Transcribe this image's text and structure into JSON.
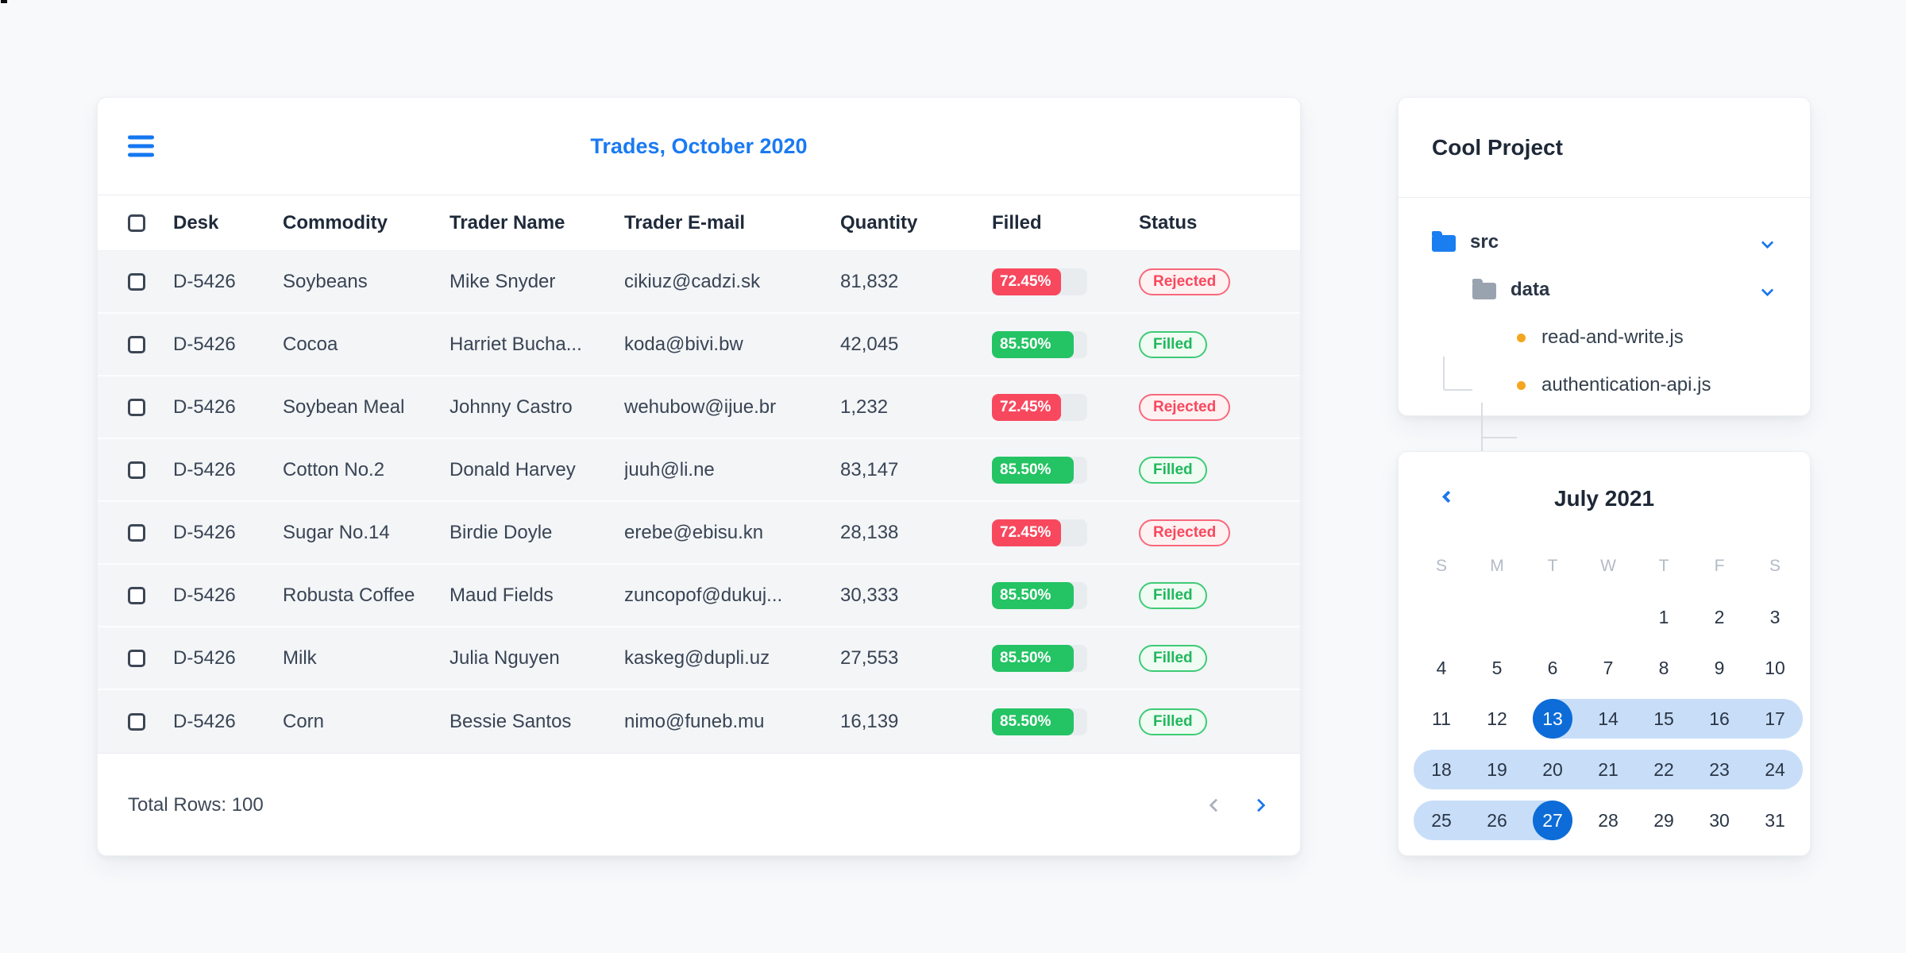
{
  "colors": {
    "accent_blue": "#1a7af2",
    "selected_day_blue": "#0d6cd8",
    "range_band_blue": "#c8def8",
    "red": "#f8485e",
    "red_badge_bg": "#fef1f2",
    "green": "#24c364",
    "green_badge_bg": "#effbf3",
    "folder_blue": "#1a7ef0",
    "folder_gray": "#99a3af",
    "bullet_orange": "#f3a61e",
    "row_background": "#f3f5f7",
    "progress_track": "#e9ecef",
    "page_background": "#f8f9fb"
  },
  "trades": {
    "menu_icon": "hamburger",
    "title": "Trades, October 2020",
    "columns": [
      "Desk",
      "Commodity",
      "Trader Name",
      "Trader E-mail",
      "Quantity",
      "Filled",
      "Status"
    ],
    "rows": [
      {
        "desk": "D-5426",
        "commodity": "Soybeans",
        "trader": "Mike Snyder",
        "email": "cikiuz@cadzi.sk",
        "quantity": "81,832",
        "filled_label": "72.45%",
        "filled_value": 72.45,
        "bar_color": "red",
        "status": "Rejected"
      },
      {
        "desk": "D-5426",
        "commodity": "Cocoa",
        "trader": "Harriet Bucha...",
        "email": "koda@bivi.bw",
        "quantity": "42,045",
        "filled_label": "85.50%",
        "filled_value": 85.5,
        "bar_color": "green",
        "status": "Filled"
      },
      {
        "desk": "D-5426",
        "commodity": "Soybean Meal",
        "trader": "Johnny Castro",
        "email": "wehubow@ijue.br",
        "quantity": "1,232",
        "filled_label": "72.45%",
        "filled_value": 72.45,
        "bar_color": "red",
        "status": "Rejected"
      },
      {
        "desk": "D-5426",
        "commodity": "Cotton No.2",
        "trader": "Donald Harvey",
        "email": "juuh@li.ne",
        "quantity": "83,147",
        "filled_label": "85.50%",
        "filled_value": 85.5,
        "bar_color": "green",
        "status": "Filled"
      },
      {
        "desk": "D-5426",
        "commodity": "Sugar No.14",
        "trader": "Birdie Doyle",
        "email": "erebe@ebisu.kn",
        "quantity": "28,138",
        "filled_label": "72.45%",
        "filled_value": 72.45,
        "bar_color": "red",
        "status": "Rejected"
      },
      {
        "desk": "D-5426",
        "commodity": "Robusta Coffee",
        "trader": "Maud Fields",
        "email": "zuncopof@dukuj...",
        "quantity": "30,333",
        "filled_label": "85.50%",
        "filled_value": 85.5,
        "bar_color": "green",
        "status": "Filled"
      },
      {
        "desk": "D-5426",
        "commodity": "Milk",
        "trader": "Julia Nguyen",
        "email": "kaskeg@dupli.uz",
        "quantity": "27,553",
        "filled_label": "85.50%",
        "filled_value": 85.5,
        "bar_color": "green",
        "status": "Filled"
      },
      {
        "desk": "D-5426",
        "commodity": "Corn",
        "trader": "Bessie Santos",
        "email": "nimo@funeb.mu",
        "quantity": "16,139",
        "filled_label": "85.50%",
        "filled_value": 85.5,
        "bar_color": "green",
        "status": "Filled"
      }
    ],
    "footer": {
      "total_label": "Total Rows: 100",
      "prev_icon": "chevron-left",
      "next_icon": "chevron-right"
    }
  },
  "project": {
    "title": "Cool Project",
    "tree": {
      "root": {
        "name": "src",
        "type": "folder",
        "color": "blue",
        "expanded": true
      },
      "child": {
        "name": "data",
        "type": "folder",
        "color": "gray",
        "expanded": true
      },
      "files": [
        {
          "name": "read-and-write.js"
        },
        {
          "name": "authentication-api.js"
        }
      ]
    }
  },
  "calendar": {
    "nav_prev_icon": "chevron-left",
    "title": "July 2021",
    "weekdays": [
      "S",
      "M",
      "T",
      "W",
      "T",
      "F",
      "S"
    ],
    "first_day_col": 4,
    "days_in_month": 31,
    "range_start": 13,
    "range_end": 27,
    "selected": [
      13,
      27
    ]
  }
}
